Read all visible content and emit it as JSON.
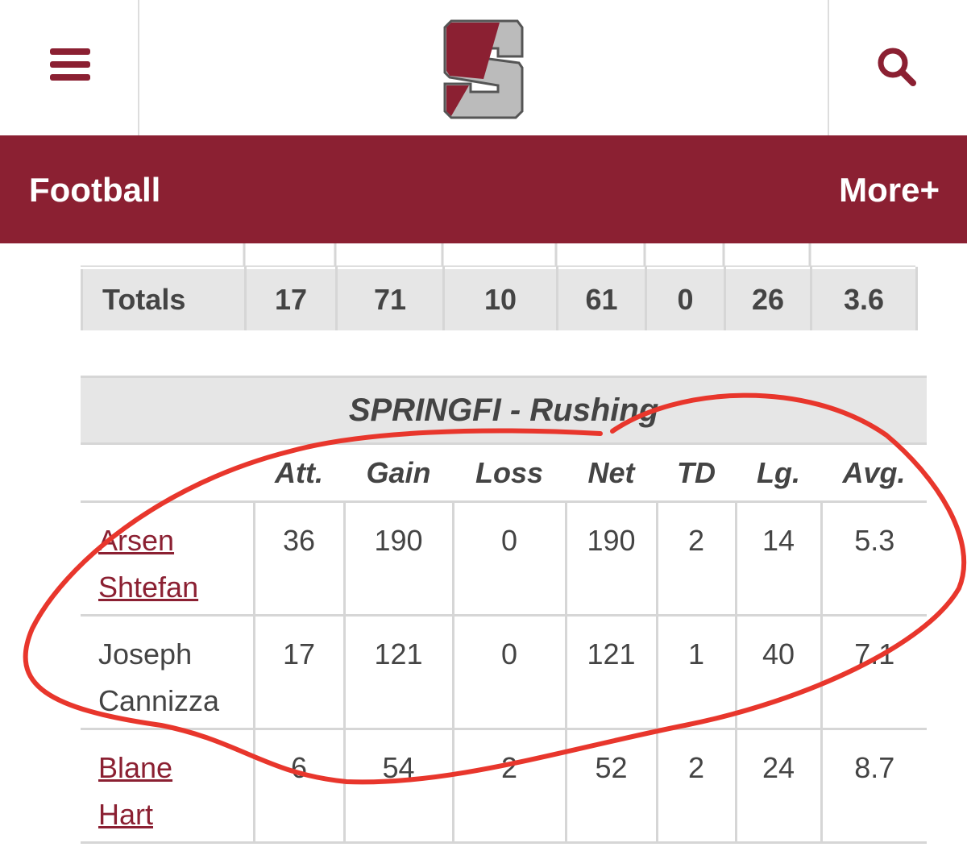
{
  "header": {
    "nav_title": "Football",
    "more": "More+"
  },
  "totals_table": {
    "rows": [
      [
        "Totals",
        17,
        71,
        10,
        61,
        0,
        26,
        3.6
      ]
    ]
  },
  "rushing_table": {
    "title": "SPRINGFI - Rushing",
    "columns": [
      "Att.",
      "Gain",
      "Loss",
      "Net",
      "TD",
      "Lg.",
      "Avg."
    ],
    "rows": [
      [
        "Arsen Shtefan",
        36,
        190,
        0,
        190,
        2,
        14,
        5.3
      ],
      [
        "Joseph Cannizza",
        17,
        121,
        0,
        121,
        1,
        40,
        7.1
      ],
      [
        "Blane Hart",
        6,
        54,
        2,
        52,
        2,
        24,
        8.7
      ]
    ]
  }
}
